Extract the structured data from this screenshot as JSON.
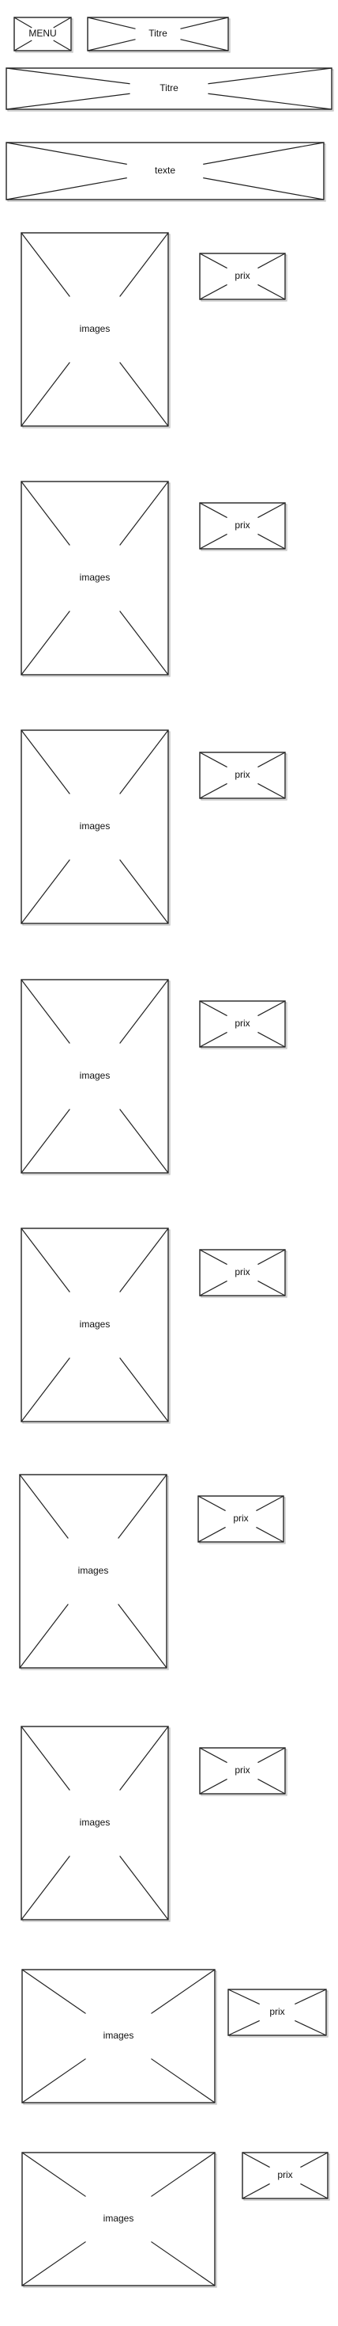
{
  "header": {
    "menu_label": "MENU",
    "title_small": "Titre"
  },
  "banner": {
    "title": "Titre"
  },
  "intro": {
    "text": "texte"
  },
  "products": [
    {
      "image_label": "images",
      "price_label": "prix"
    },
    {
      "image_label": "images",
      "price_label": "prix"
    },
    {
      "image_label": "images",
      "price_label": "prix"
    },
    {
      "image_label": "images",
      "price_label": "prix"
    },
    {
      "image_label": "images",
      "price_label": "prix"
    },
    {
      "image_label": "images",
      "price_label": "prix"
    },
    {
      "image_label": "images",
      "price_label": "prix"
    },
    {
      "image_label": "images",
      "price_label": "prix"
    },
    {
      "image_label": "images",
      "price_label": "prix"
    }
  ]
}
